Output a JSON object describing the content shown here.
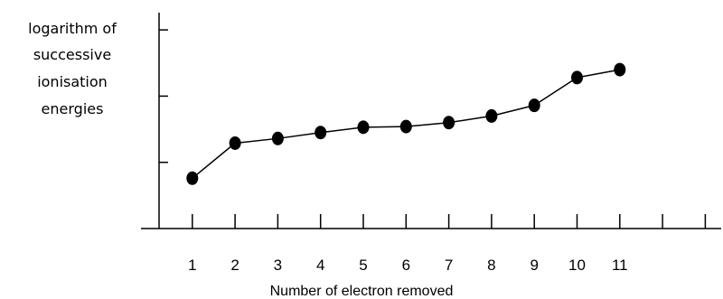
{
  "chart_data": {
    "type": "line",
    "ylabel_lines": [
      "logarithm of",
      "successive",
      "ionisation",
      "energies"
    ],
    "xlabel": "Number of electron removed",
    "x": [
      1,
      2,
      3,
      4,
      5,
      6,
      7,
      8,
      9,
      10,
      11
    ],
    "y": [
      0.76,
      1.29,
      1.36,
      1.45,
      1.53,
      1.54,
      1.6,
      1.7,
      1.86,
      2.28,
      2.4
    ],
    "tick_labels": [
      "1",
      "2",
      "3",
      "4",
      "5",
      "6",
      "7",
      "8",
      "9",
      "10",
      "11"
    ],
    "xlim": [
      0,
      13
    ],
    "ylim": [
      0,
      3
    ],
    "grid": false,
    "line_color": "#000000",
    "marker_color": "#000000"
  }
}
